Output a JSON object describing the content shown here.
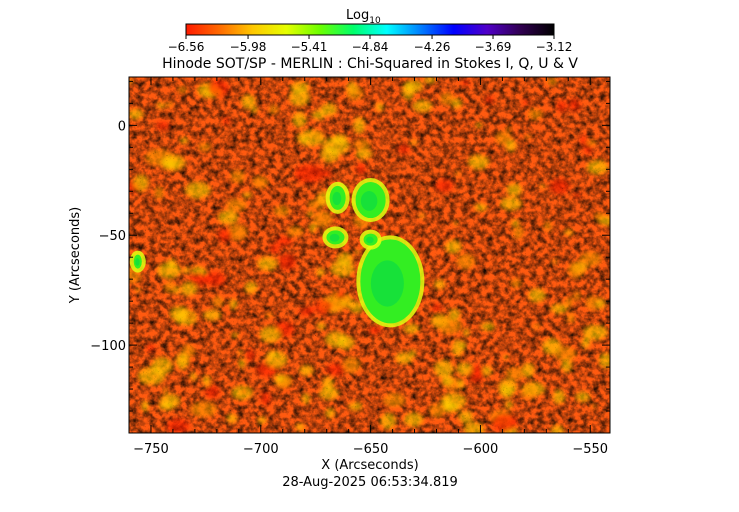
{
  "chart_data": {
    "type": "heatmap",
    "title": "Hinode SOT/SP - MERLIN : Chi-Squared in Stokes I, Q, U & V",
    "xlabel": "X (Arcseconds)",
    "ylabel": "Y (Arcseconds)",
    "timestamp": "28-Aug-2025 06:53:34.819",
    "xlim": [
      -760,
      -541
    ],
    "ylim": [
      -140,
      22
    ],
    "xticks": [
      -750,
      -700,
      -650,
      -600,
      -550
    ],
    "xtick_labels": [
      "−750",
      "−700",
      "−650",
      "−600",
      "−550"
    ],
    "yticks": [
      0,
      -50,
      -100
    ],
    "ytick_labels": [
      "0",
      "−50",
      "−100"
    ],
    "colorbar": {
      "title": "Log",
      "title_subscript": "10",
      "range": [
        -6.56,
        -3.12
      ],
      "ticks": [
        -6.56,
        -5.98,
        -5.41,
        -4.84,
        -4.26,
        -3.69,
        -3.12
      ],
      "tick_labels": [
        "−6.56",
        "−5.98",
        "−5.41",
        "−4.84",
        "−4.26",
        "−3.69",
        "−3.12"
      ],
      "colors": [
        "#ff1a00",
        "#ff6a00",
        "#ffc800",
        "#e6ff00",
        "#6cff00",
        "#00ff6a",
        "#00ffff",
        "#0080ff",
        "#0000ff",
        "#5000c8",
        "#300050",
        "#000000"
      ]
    },
    "features": [
      {
        "name": "sunspot umbra (low chi-squared)",
        "x": -641,
        "y": -71,
        "value": -5.1
      },
      {
        "name": "pore",
        "x": -650,
        "y": -34,
        "value": -5.1
      },
      {
        "name": "pore",
        "x": -665,
        "y": -33,
        "value": -5.1
      },
      {
        "name": "pore",
        "x": -666,
        "y": -51,
        "value": -5.1
      },
      {
        "name": "pore",
        "x": -650,
        "y": -52,
        "value": -5.1
      },
      {
        "name": "pore",
        "x": -756,
        "y": -62,
        "value": -5.1
      }
    ]
  }
}
